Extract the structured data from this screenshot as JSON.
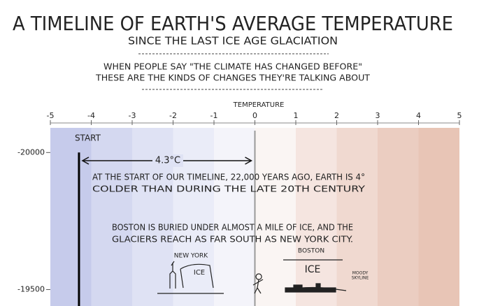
{
  "chart_data": {
    "type": "line",
    "title": "A TIMELINE OF EARTH'S AVERAGE TEMPERATURE",
    "subtitle": "SINCE THE LAST ICE AGE GLACIATION",
    "intro": [
      "WHEN PEOPLE SAY \"THE CLIMATE HAS CHANGED BEFORE\"",
      "THESE ARE THE KINDS OF CHANGES THEY'RE TALKING ABOUT"
    ],
    "x_label": "TEMPERATURE",
    "xlim": [
      -5,
      5
    ],
    "xticks": [
      -5,
      -4,
      -3,
      -2,
      -1,
      0,
      1,
      2,
      3,
      4,
      5
    ],
    "ylim": [
      -20090,
      -19440
    ],
    "yticks": [
      -20000,
      -19500
    ],
    "background_colors": [
      "#c6cbeb",
      "#d4d8f0",
      "#dfe2f4",
      "#eaecf8",
      "#f4f4fa",
      "#faf5f3",
      "#f5e5e0",
      "#f0d9d0",
      "#ebcdc1",
      "#e8c5b6"
    ],
    "reference_x": 0,
    "series": [
      {
        "name": "START",
        "color": "#000000",
        "x": [
          -4.3,
          -4.3
        ],
        "y": [
          -20000,
          -19440
        ]
      }
    ],
    "span_label": "4.3°C",
    "annotations": [
      [
        "AT THE START OF OUR TIMELINE, 22,000 YEARS AGO, EARTH IS 4°",
        "COLDER THAN DURING THE LATE 20TH CENTURY"
      ],
      [
        "BOSTON IS BURIED UNDER ALMOST A MILE OF ICE, AND THE",
        "GLACIERS REACH AS FAR SOUTH AS NEW YORK CITY."
      ]
    ],
    "sketch_labels": [
      "NEW YORK",
      "ICE",
      "BOSTON",
      "ICE",
      "MOODY",
      "SKYLINE"
    ]
  }
}
